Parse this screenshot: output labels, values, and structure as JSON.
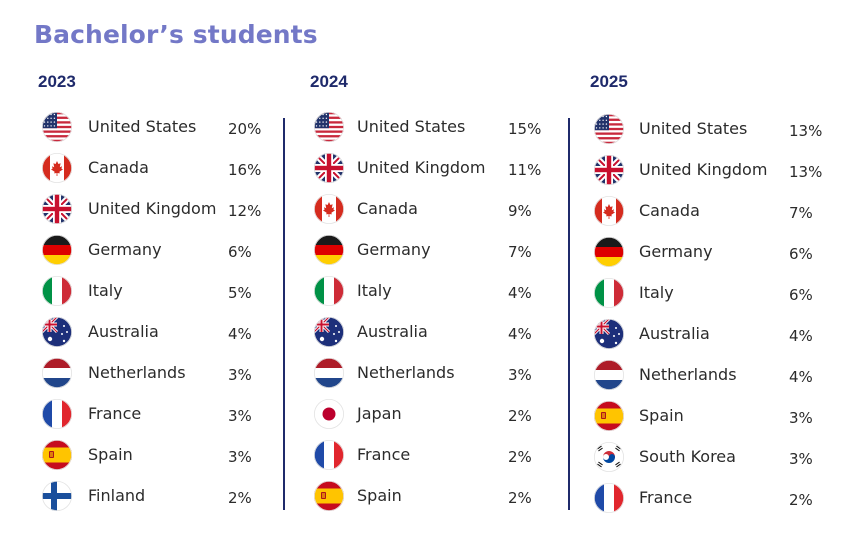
{
  "title": "Bachelor’s students",
  "columns": [
    {
      "year": "2023",
      "rows": [
        {
          "country": "United States",
          "pct": "20%",
          "flag": "us-flag-icon"
        },
        {
          "country": "Canada",
          "pct": "16%",
          "flag": "ca-flag-icon"
        },
        {
          "country": "United Kingdom",
          "pct": "12%",
          "flag": "gb-flag-icon"
        },
        {
          "country": "Germany",
          "pct": "6%",
          "flag": "de-flag-icon"
        },
        {
          "country": "Italy",
          "pct": "5%",
          "flag": "it-flag-icon"
        },
        {
          "country": "Australia",
          "pct": "4%",
          "flag": "au-flag-icon"
        },
        {
          "country": "Netherlands",
          "pct": "3%",
          "flag": "nl-flag-icon"
        },
        {
          "country": "France",
          "pct": "3%",
          "flag": "fr-flag-icon"
        },
        {
          "country": "Spain",
          "pct": "3%",
          "flag": "es-flag-icon"
        },
        {
          "country": "Finland",
          "pct": "2%",
          "flag": "fi-flag-icon"
        }
      ]
    },
    {
      "year": "2024",
      "rows": [
        {
          "country": "United States",
          "pct": "15%",
          "flag": "us-flag-icon"
        },
        {
          "country": "United Kingdom",
          "pct": "11%",
          "flag": "gb-flag-icon"
        },
        {
          "country": "Canada",
          "pct": "9%",
          "flag": "ca-flag-icon"
        },
        {
          "country": "Germany",
          "pct": "7%",
          "flag": "de-flag-icon"
        },
        {
          "country": "Italy",
          "pct": "4%",
          "flag": "it-flag-icon"
        },
        {
          "country": "Australia",
          "pct": "4%",
          "flag": "au-flag-icon"
        },
        {
          "country": "Netherlands",
          "pct": "3%",
          "flag": "nl-flag-icon"
        },
        {
          "country": "Japan",
          "pct": "2%",
          "flag": "jp-flag-icon"
        },
        {
          "country": "France",
          "pct": "2%",
          "flag": "fr-flag-icon"
        },
        {
          "country": "Spain",
          "pct": "2%",
          "flag": "es-flag-icon"
        }
      ]
    },
    {
      "year": "2025",
      "rows": [
        {
          "country": "United States",
          "pct": "13%",
          "flag": "us-flag-icon"
        },
        {
          "country": "United Kingdom",
          "pct": "13%",
          "flag": "gb-flag-icon"
        },
        {
          "country": "Canada",
          "pct": "7%",
          "flag": "ca-flag-icon"
        },
        {
          "country": "Germany",
          "pct": "6%",
          "flag": "de-flag-icon"
        },
        {
          "country": "Italy",
          "pct": "6%",
          "flag": "it-flag-icon"
        },
        {
          "country": "Australia",
          "pct": "4%",
          "flag": "au-flag-icon"
        },
        {
          "country": "Netherlands",
          "pct": "4%",
          "flag": "nl-flag-icon"
        },
        {
          "country": "Spain",
          "pct": "3%",
          "flag": "es-flag-icon"
        },
        {
          "country": "South Korea",
          "pct": "3%",
          "flag": "kr-flag-icon"
        },
        {
          "country": "France",
          "pct": "2%",
          "flag": "fr-flag-icon"
        }
      ]
    }
  ],
  "colors": {
    "title": "#7378c7",
    "year": "#1f2a6b",
    "divider": "#1f2a6b",
    "text": "#2b2b2b"
  }
}
